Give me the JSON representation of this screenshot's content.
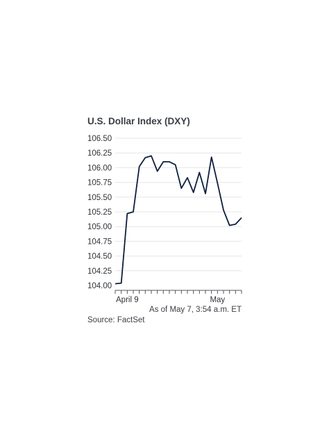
{
  "chart_data": {
    "type": "line",
    "title": "U.S. Dollar Index (DXY)",
    "xlabel": "",
    "ylabel": "",
    "ylim": [
      104.0,
      106.5
    ],
    "yticks": [
      "106.50",
      "106.25",
      "106.00",
      "105.75",
      "105.50",
      "105.25",
      "105.00",
      "104.75",
      "104.50",
      "104.25",
      "104.00"
    ],
    "xtick_labels": [
      {
        "label": "April 9",
        "index": 2
      },
      {
        "label": "May",
        "index": 17
      }
    ],
    "grid": true,
    "series": [
      {
        "color": "#0d1f3c",
        "values": [
          104.03,
          104.04,
          105.22,
          105.25,
          106.02,
          106.17,
          106.2,
          105.94,
          106.1,
          106.1,
          106.05,
          105.65,
          105.83,
          105.58,
          105.92,
          105.56,
          106.18,
          105.74,
          105.28,
          105.02,
          105.04,
          105.15
        ]
      }
    ]
  },
  "notes": {
    "as_of": "As of May 7, 3:54 a.m. ET",
    "source": "Source: FactSet"
  }
}
